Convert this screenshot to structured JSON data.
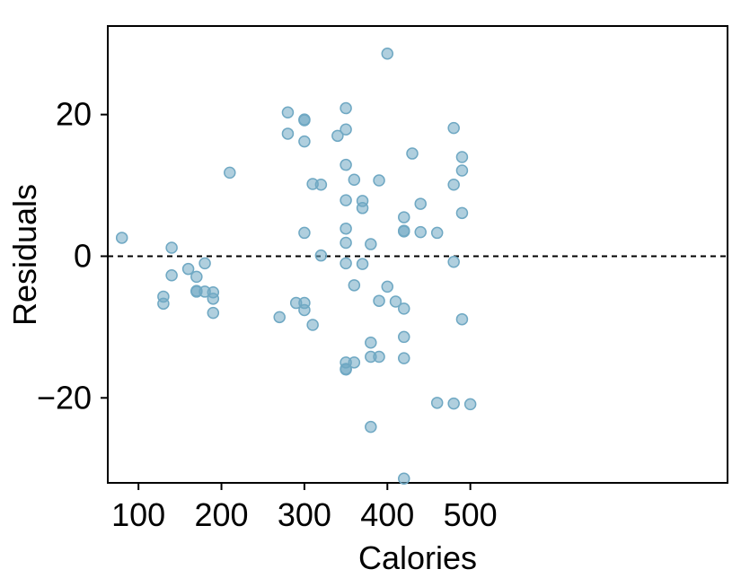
{
  "chart_data": {
    "type": "scatter",
    "xlabel": "Calories",
    "ylabel": "Residuals",
    "xlim": [
      63,
      810
    ],
    "ylim": [
      -32,
      32.5
    ],
    "x_ticks": [
      100,
      200,
      300,
      400,
      500
    ],
    "x_tick_labels": [
      "100",
      "200",
      "300",
      "400",
      "500"
    ],
    "y_ticks": [
      -20,
      0,
      20
    ],
    "y_tick_labels": [
      "−20",
      "0",
      "20"
    ],
    "grid": false,
    "reference_line": {
      "y": 0,
      "style": "dashed"
    },
    "marker_color": "#6fa8c3",
    "points": [
      {
        "x": 80,
        "y": 2.6
      },
      {
        "x": 130,
        "y": -5.7
      },
      {
        "x": 130,
        "y": -6.7
      },
      {
        "x": 140,
        "y": 1.2
      },
      {
        "x": 140,
        "y": -2.7
      },
      {
        "x": 160,
        "y": -1.8
      },
      {
        "x": 170,
        "y": -2.9
      },
      {
        "x": 170,
        "y": -4.9
      },
      {
        "x": 170,
        "y": -5.0
      },
      {
        "x": 180,
        "y": -1.0
      },
      {
        "x": 180,
        "y": -5.0
      },
      {
        "x": 190,
        "y": -5.1
      },
      {
        "x": 190,
        "y": -6.0
      },
      {
        "x": 190,
        "y": -8.0
      },
      {
        "x": 210,
        "y": 11.8
      },
      {
        "x": 270,
        "y": -8.6
      },
      {
        "x": 280,
        "y": 20.3
      },
      {
        "x": 280,
        "y": 17.3
      },
      {
        "x": 290,
        "y": -6.6
      },
      {
        "x": 300,
        "y": 19.3
      },
      {
        "x": 300,
        "y": 19.2
      },
      {
        "x": 300,
        "y": 16.2
      },
      {
        "x": 300,
        "y": 3.3
      },
      {
        "x": 300,
        "y": -6.6
      },
      {
        "x": 300,
        "y": -7.6
      },
      {
        "x": 310,
        "y": 10.2
      },
      {
        "x": 310,
        "y": -9.7
      },
      {
        "x": 320,
        "y": 10.1
      },
      {
        "x": 320,
        "y": 0.1
      },
      {
        "x": 340,
        "y": 17.0
      },
      {
        "x": 350,
        "y": 20.9
      },
      {
        "x": 350,
        "y": 17.9
      },
      {
        "x": 350,
        "y": 12.9
      },
      {
        "x": 350,
        "y": 7.9
      },
      {
        "x": 350,
        "y": 3.9
      },
      {
        "x": 350,
        "y": 1.9
      },
      {
        "x": 350,
        "y": -1.0
      },
      {
        "x": 350,
        "y": -15.0
      },
      {
        "x": 350,
        "y": -15.9
      },
      {
        "x": 350,
        "y": -16.0
      },
      {
        "x": 360,
        "y": 10.8
      },
      {
        "x": 360,
        "y": -4.1
      },
      {
        "x": 360,
        "y": -15.0
      },
      {
        "x": 370,
        "y": 7.8
      },
      {
        "x": 370,
        "y": 6.8
      },
      {
        "x": 370,
        "y": -1.1
      },
      {
        "x": 380,
        "y": 1.7
      },
      {
        "x": 380,
        "y": -12.2
      },
      {
        "x": 380,
        "y": -14.2
      },
      {
        "x": 380,
        "y": -24.1
      },
      {
        "x": 390,
        "y": 10.7
      },
      {
        "x": 390,
        "y": -6.3
      },
      {
        "x": 390,
        "y": -14.2
      },
      {
        "x": 400,
        "y": 28.6
      },
      {
        "x": 400,
        "y": -4.3
      },
      {
        "x": 410,
        "y": -6.4
      },
      {
        "x": 420,
        "y": 5.5
      },
      {
        "x": 420,
        "y": 3.5
      },
      {
        "x": 420,
        "y": 3.6
      },
      {
        "x": 420,
        "y": -7.4
      },
      {
        "x": 420,
        "y": -11.4
      },
      {
        "x": 420,
        "y": -14.4
      },
      {
        "x": 420,
        "y": -31.4
      },
      {
        "x": 430,
        "y": 14.5
      },
      {
        "x": 440,
        "y": 7.4
      },
      {
        "x": 440,
        "y": 3.4
      },
      {
        "x": 460,
        "y": 3.3
      },
      {
        "x": 460,
        "y": -20.7
      },
      {
        "x": 480,
        "y": 18.1
      },
      {
        "x": 480,
        "y": 10.1
      },
      {
        "x": 480,
        "y": -0.8
      },
      {
        "x": 480,
        "y": -20.8
      },
      {
        "x": 490,
        "y": 14.0
      },
      {
        "x": 490,
        "y": 12.1
      },
      {
        "x": 490,
        "y": 6.1
      },
      {
        "x": 490,
        "y": -8.9
      },
      {
        "x": 500,
        "y": -20.9
      }
    ]
  }
}
